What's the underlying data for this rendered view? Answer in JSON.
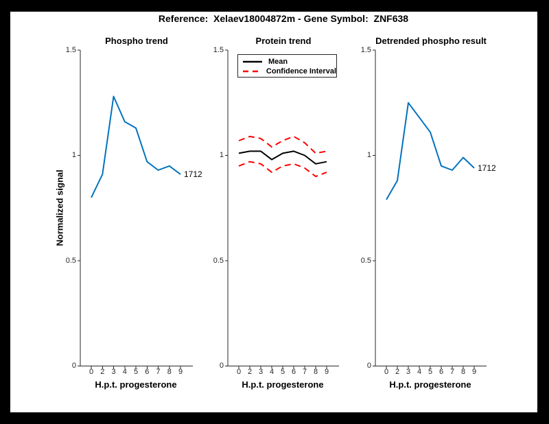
{
  "suptitle": "Reference:  Xelaev18004872m - Gene Symbol:  ZNF638",
  "colors": {
    "frame_background": "#000000",
    "figure_background": "#FFFFFF",
    "axis": "#262626",
    "trend_blue": "#0072BD",
    "ci_red": "#FF0000",
    "mean_black": "#000000"
  },
  "chart_data": [
    {
      "type": "line",
      "title": "Phospho trend",
      "xlabel": "H.p.t. progesterone",
      "ylabel": "Normalized signal",
      "x_tick_labels": [
        "0",
        "2",
        "3",
        "4",
        "5",
        "6",
        "7",
        "8",
        "9"
      ],
      "y_tick_labels": [
        "0",
        "0.5",
        "1",
        "1.5"
      ],
      "y_ticks": [
        0,
        0.5,
        1,
        1.5
      ],
      "ylim": [
        0,
        1.5
      ],
      "grid": false,
      "legend": null,
      "end_label": "1712",
      "series": [
        {
          "name": "trajectory-1712-phospho",
          "color": "#0072BD",
          "dash": "solid",
          "values": [
            0.8,
            0.91,
            1.28,
            1.16,
            1.13,
            0.97,
            0.93,
            0.95,
            0.91
          ]
        }
      ]
    },
    {
      "type": "line",
      "title": "Protein trend",
      "xlabel": "H.p.t. progesterone",
      "ylabel": null,
      "x_tick_labels": [
        "0",
        "2",
        "3",
        "4",
        "5",
        "6",
        "7",
        "8",
        "9"
      ],
      "y_tick_labels": [
        "0",
        "0.5",
        "1",
        "1.5"
      ],
      "y_ticks": [
        0,
        0.5,
        1,
        1.5
      ],
      "ylim": [
        0,
        1.5
      ],
      "grid": false,
      "legend": {
        "position": "top-left",
        "entries": [
          {
            "label": "Mean",
            "color": "#000000",
            "dash": "solid"
          },
          {
            "label": "Confidence Interval",
            "color": "#FF0000",
            "dash": "dashed"
          }
        ]
      },
      "end_label": null,
      "series": [
        {
          "name": "mean",
          "color": "#000000",
          "dash": "solid",
          "values": [
            1.01,
            1.02,
            1.02,
            0.98,
            1.01,
            1.02,
            1.0,
            0.96,
            0.97
          ]
        },
        {
          "name": "confidence-interval-upper",
          "color": "#FF0000",
          "dash": "dashed",
          "values": [
            1.07,
            1.09,
            1.08,
            1.04,
            1.07,
            1.09,
            1.06,
            1.01,
            1.02
          ]
        },
        {
          "name": "confidence-interval-lower",
          "color": "#FF0000",
          "dash": "dashed",
          "values": [
            0.95,
            0.97,
            0.96,
            0.92,
            0.95,
            0.96,
            0.94,
            0.9,
            0.92
          ]
        }
      ]
    },
    {
      "type": "line",
      "title": "Detrended phospho result",
      "xlabel": "H.p.t. progesterone",
      "ylabel": null,
      "x_tick_labels": [
        "0",
        "2",
        "3",
        "4",
        "5",
        "6",
        "7",
        "8",
        "9"
      ],
      "y_tick_labels": [
        "0",
        "0.5",
        "1",
        "1.5"
      ],
      "y_ticks": [
        0,
        0.5,
        1,
        1.5
      ],
      "ylim": [
        0,
        1.5
      ],
      "grid": false,
      "legend": null,
      "end_label": "1712",
      "series": [
        {
          "name": "trajectory-1712-detrended",
          "color": "#0072BD",
          "dash": "solid",
          "values": [
            0.79,
            0.88,
            1.25,
            1.18,
            1.11,
            0.95,
            0.93,
            0.99,
            0.94
          ]
        }
      ]
    }
  ]
}
